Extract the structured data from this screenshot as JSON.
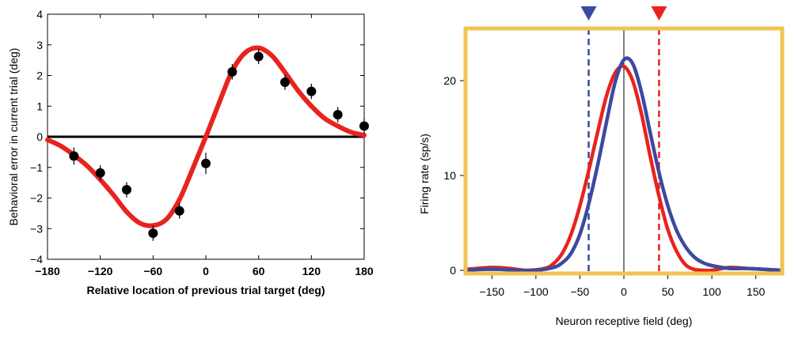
{
  "chart_data": [
    {
      "type": "scatter",
      "title": "",
      "xlabel": "Relative location of previous trial target (deg)",
      "ylabel": "Behavioral error in current trial (deg)",
      "xlim": [
        -180,
        180
      ],
      "ylim": [
        -4,
        4
      ],
      "xticks": [
        -180,
        -120,
        -60,
        0,
        60,
        120,
        180
      ],
      "xtick_labels": [
        "−180",
        "−120",
        "−60",
        "0",
        "60",
        "120",
        "180"
      ],
      "yticks": [
        -4,
        -3,
        -2,
        -1,
        0,
        1,
        2,
        3,
        4
      ],
      "ytick_labels": [
        "−4",
        "−3",
        "−2",
        "−1",
        "0",
        "1",
        "2",
        "3",
        "4"
      ],
      "zero_line": true,
      "grid": false,
      "points": [
        {
          "x": -150,
          "y": -0.63,
          "err": 0.28
        },
        {
          "x": -120,
          "y": -1.18,
          "err": 0.25
        },
        {
          "x": -90,
          "y": -1.73,
          "err": 0.25
        },
        {
          "x": -60,
          "y": -3.15,
          "err": 0.25
        },
        {
          "x": -30,
          "y": -2.42,
          "err": 0.25
        },
        {
          "x": 0,
          "y": -0.87,
          "err": 0.35
        },
        {
          "x": 30,
          "y": 2.12,
          "err": 0.25
        },
        {
          "x": 60,
          "y": 2.62,
          "err": 0.25
        },
        {
          "x": 90,
          "y": 1.78,
          "err": 0.25
        },
        {
          "x": 120,
          "y": 1.48,
          "err": 0.25
        },
        {
          "x": 150,
          "y": 0.72,
          "err": 0.25
        },
        {
          "x": 180,
          "y": 0.35,
          "err": 0.25
        }
      ],
      "fit": {
        "x": [
          -180,
          -165,
          -150,
          -135,
          -120,
          -105,
          -90,
          -75,
          -60,
          -45,
          -30,
          -15,
          0,
          15,
          30,
          45,
          60,
          75,
          90,
          105,
          120,
          135,
          150,
          165,
          180
        ],
        "y": [
          -0.1,
          -0.3,
          -0.6,
          -0.95,
          -1.4,
          -1.9,
          -2.45,
          -2.82,
          -2.9,
          -2.7,
          -2.05,
          -1.05,
          0,
          1.1,
          2.15,
          2.75,
          2.9,
          2.65,
          2.1,
          1.5,
          1.0,
          0.6,
          0.35,
          0.15,
          0.05
        ]
      },
      "colors": {
        "points": "#000000",
        "fit": "#e8231e",
        "zero_line": "#000000"
      }
    },
    {
      "type": "line",
      "title": "",
      "xlabel": "Neuron receptive field (deg)",
      "ylabel": "Firing rate (sp/s)",
      "xlim": [
        -180,
        180
      ],
      "ylim": [
        0,
        25.5
      ],
      "xticks": [
        -150,
        -100,
        -50,
        0,
        50,
        100,
        150
      ],
      "xtick_labels": [
        "−150",
        "−100",
        "−50",
        "0",
        "50",
        "100",
        "150"
      ],
      "yticks": [
        0,
        10,
        20
      ],
      "ytick_labels": [
        "0",
        "10",
        "20"
      ],
      "grid": false,
      "zero_line_x": 0,
      "vlines": [
        {
          "x": -40,
          "color": "#3b4aa0",
          "style": "dashed",
          "marker": "triangle-down"
        },
        {
          "x": 40,
          "color": "#e8231e",
          "style": "dashed",
          "marker": "triangle-down"
        }
      ],
      "series": [
        {
          "color": "#e8231e",
          "x": [
            -180,
            -150,
            -130,
            -110,
            -90,
            -80,
            -70,
            -60,
            -50,
            -40,
            -30,
            -20,
            -10,
            0,
            10,
            20,
            30,
            40,
            50,
            60,
            70,
            80,
            90,
            100,
            120,
            140,
            160,
            180
          ],
          "y": [
            0.1,
            0.3,
            0.2,
            0.0,
            0.2,
            0.7,
            1.8,
            3.8,
            6.8,
            10.5,
            14.5,
            18.3,
            20.8,
            21.5,
            20.0,
            16.5,
            12.0,
            7.8,
            4.3,
            2.0,
            0.6,
            0.1,
            0.0,
            0.0,
            0.3,
            0.2,
            0.1,
            0.0
          ]
        },
        {
          "color": "#3b4aa0",
          "x": [
            -180,
            -160,
            -140,
            -120,
            -100,
            -80,
            -70,
            -60,
            -50,
            -40,
            -30,
            -20,
            -10,
            0,
            10,
            20,
            30,
            40,
            50,
            60,
            70,
            80,
            90,
            100,
            120,
            140,
            160,
            180
          ],
          "y": [
            0.0,
            0.1,
            0.1,
            0.0,
            0.0,
            0.3,
            0.8,
            1.8,
            3.8,
            7.0,
            11.0,
            15.5,
            19.8,
            22.2,
            21.8,
            18.8,
            14.5,
            10.3,
            6.8,
            4.2,
            2.5,
            1.4,
            0.8,
            0.5,
            0.2,
            0.2,
            0.1,
            0.0
          ]
        }
      ],
      "colors": {
        "frame": "#eec454",
        "zero_line": "#000000"
      }
    }
  ]
}
